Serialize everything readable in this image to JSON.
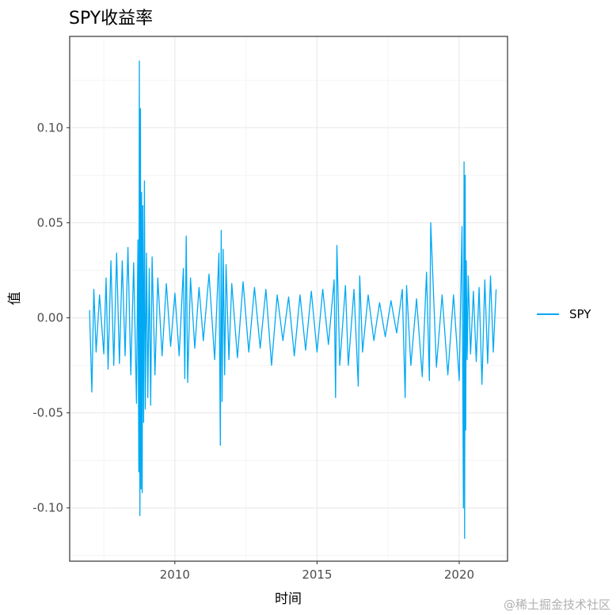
{
  "chart_data": {
    "type": "line",
    "title": "SPY收益率",
    "xlabel": "时间",
    "ylabel": "值",
    "x_ticks": [
      2010,
      2015,
      2020
    ],
    "y_ticks": [
      0.1,
      0.05,
      0.0,
      -0.05,
      -0.1
    ],
    "y_tick_labels": [
      "0.10",
      "0.05",
      "0.00",
      "-0.05",
      "-0.10"
    ],
    "xlim": [
      2006.3,
      2021.7
    ],
    "ylim": [
      -0.128,
      0.148
    ],
    "grid": true,
    "legend_position": "right",
    "series": [
      {
        "name": "SPY",
        "color": "#00A9F4",
        "x": [
          2007.0,
          2007.08,
          2007.15,
          2007.23,
          2007.35,
          2007.5,
          2007.58,
          2007.65,
          2007.75,
          2007.85,
          2007.95,
          2008.05,
          2008.15,
          2008.25,
          2008.35,
          2008.45,
          2008.55,
          2008.65,
          2008.7,
          2008.73,
          2008.75,
          2008.77,
          2008.79,
          2008.81,
          2008.83,
          2008.85,
          2008.87,
          2008.9,
          2008.93,
          2008.96,
          2009.0,
          2009.05,
          2009.1,
          2009.15,
          2009.2,
          2009.3,
          2009.4,
          2009.55,
          2009.7,
          2009.85,
          2010.0,
          2010.15,
          2010.3,
          2010.35,
          2010.4,
          2010.45,
          2010.55,
          2010.7,
          2010.85,
          2011.0,
          2011.2,
          2011.4,
          2011.55,
          2011.6,
          2011.63,
          2011.66,
          2011.7,
          2011.75,
          2011.8,
          2011.9,
          2012.0,
          2012.2,
          2012.4,
          2012.6,
          2012.8,
          2013.0,
          2013.2,
          2013.4,
          2013.6,
          2013.8,
          2014.0,
          2014.2,
          2014.4,
          2014.6,
          2014.8,
          2015.0,
          2015.2,
          2015.4,
          2015.6,
          2015.65,
          2015.7,
          2015.8,
          2016.0,
          2016.1,
          2016.3,
          2016.45,
          2016.5,
          2016.6,
          2016.8,
          2017.0,
          2017.2,
          2017.4,
          2017.6,
          2017.8,
          2018.0,
          2018.1,
          2018.15,
          2018.3,
          2018.5,
          2018.7,
          2018.85,
          2018.95,
          2019.0,
          2019.2,
          2019.4,
          2019.6,
          2019.8,
          2020.0,
          2020.1,
          2020.15,
          2020.17,
          2020.19,
          2020.21,
          2020.23,
          2020.25,
          2020.28,
          2020.32,
          2020.4,
          2020.5,
          2020.6,
          2020.7,
          2020.8,
          2020.9,
          2021.0,
          2021.1,
          2021.2,
          2021.3
        ],
        "values": [
          0.004,
          -0.039,
          0.015,
          -0.018,
          0.012,
          -0.019,
          0.021,
          -0.027,
          0.03,
          -0.025,
          0.034,
          -0.024,
          0.03,
          -0.02,
          0.037,
          -0.03,
          0.029,
          -0.045,
          0.041,
          -0.081,
          0.135,
          -0.104,
          0.11,
          -0.09,
          0.066,
          -0.092,
          0.059,
          -0.055,
          0.072,
          -0.048,
          0.034,
          -0.042,
          0.026,
          -0.046,
          0.032,
          -0.03,
          0.021,
          -0.02,
          0.018,
          -0.015,
          0.013,
          -0.02,
          0.026,
          -0.032,
          0.043,
          -0.034,
          0.021,
          -0.016,
          0.016,
          -0.012,
          0.023,
          -0.022,
          0.034,
          -0.067,
          0.046,
          -0.044,
          0.036,
          -0.03,
          0.028,
          -0.022,
          0.018,
          -0.021,
          0.019,
          -0.018,
          0.016,
          -0.016,
          0.015,
          -0.025,
          0.012,
          -0.012,
          0.011,
          -0.02,
          0.012,
          -0.017,
          0.014,
          -0.018,
          0.015,
          -0.014,
          0.02,
          -0.042,
          0.038,
          -0.025,
          0.017,
          -0.025,
          0.015,
          -0.036,
          0.022,
          -0.018,
          0.012,
          -0.012,
          0.008,
          -0.01,
          0.009,
          -0.008,
          0.015,
          -0.042,
          0.017,
          -0.025,
          0.01,
          -0.031,
          0.024,
          -0.033,
          0.05,
          -0.026,
          0.012,
          -0.03,
          0.012,
          -0.033,
          0.048,
          -0.1,
          0.082,
          -0.116,
          0.075,
          -0.059,
          0.03,
          -0.022,
          0.022,
          -0.019,
          0.014,
          -0.023,
          0.016,
          -0.035,
          0.02,
          -0.024,
          0.022,
          -0.018,
          0.015
        ]
      }
    ]
  },
  "watermark": "@稀土掘金技术社区"
}
